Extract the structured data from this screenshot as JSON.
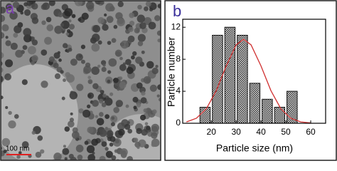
{
  "image_panel": {
    "label": "a",
    "scale_bar": "100 nm"
  },
  "chart_data": {
    "type": "histogram",
    "label": "b",
    "xlabel": "Particle size (nm)",
    "ylabel": "Particle number",
    "bins": [
      15,
      20,
      25,
      30,
      35,
      40,
      45,
      50,
      55
    ],
    "values": [
      2,
      11,
      12,
      11,
      5,
      3,
      2,
      4
    ],
    "xlim": [
      8.5,
      66
    ],
    "xticks": [
      20,
      30,
      40,
      50,
      60
    ],
    "ylim": [
      0,
      13
    ],
    "yticks": [
      0,
      4,
      8,
      12
    ],
    "fit": {
      "color": "#d03030",
      "x": [
        10,
        14,
        18,
        22,
        26,
        30,
        33,
        36,
        40,
        44,
        48,
        52,
        56,
        60
      ],
      "y": [
        0.17,
        0.63,
        1.81,
        4.07,
        7.16,
        9.8,
        10.5,
        9.8,
        7.16,
        4.07,
        1.81,
        0.63,
        0.17,
        0.04
      ]
    }
  }
}
